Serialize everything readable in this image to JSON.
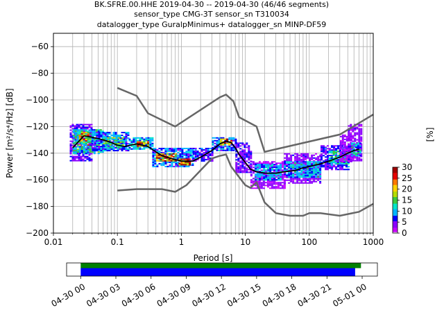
{
  "title": {
    "line1": "BK.SFRE.00.HHE   2019-04-30 -- 2019-04-30  (46/46 segments)",
    "line2": "sensor_type CMG-3T sensor_sn T310034",
    "line3": "datalogger_type GuralpMinimus+ datalogger_sn MINP-DF59"
  },
  "colors": {
    "model_lines": "#666666",
    "mean_line": "#000000",
    "grid": "#b0b0b0",
    "colorbar": [
      "#ffffff",
      "#c800ff",
      "#8c00ff",
      "#0000ff",
      "#00b4ff",
      "#00e6c8",
      "#3cc83c",
      "#b4dc00",
      "#ffd200",
      "#ff7800",
      "#e60000",
      "#a00000"
    ],
    "timeline_top": "#008000",
    "timeline_bottom": "#0000ff"
  },
  "chart_data": [
    {
      "type": "heatmap",
      "title": "BK.SFRE.00.HHE   2019-04-30 -- 2019-04-30  (46/46 segments)",
      "xlabel": "Period [s]",
      "ylabel": "Power [m²/s⁴/Hz] [dB]",
      "xscale": "log",
      "xlim": [
        0.01,
        1000
      ],
      "ylim": [
        -200,
        -50
      ],
      "x_ticks": [
        0.01,
        0.1,
        1,
        10,
        100,
        1000
      ],
      "x_tick_labels": [
        "0.01",
        "0.1",
        "1",
        "10",
        "100",
        "1000"
      ],
      "y_ticks": [
        -200,
        -180,
        -160,
        -140,
        -120,
        -100,
        -80,
        -60
      ],
      "y_tick_labels": [
        "−200",
        "−180",
        "−160",
        "−140",
        "−120",
        "−100",
        "−80",
        "−60"
      ],
      "grid": true,
      "colorbar": {
        "label": "[%]",
        "range": [
          0,
          30
        ],
        "ticks": [
          0,
          5,
          10,
          15,
          20,
          25,
          30
        ],
        "tick_labels": [
          "0",
          "5",
          "10",
          "15",
          "20",
          "25",
          "30"
        ]
      },
      "mean_curve": {
        "period": [
          0.02,
          0.025,
          0.03,
          0.04,
          0.06,
          0.08,
          0.1,
          0.13,
          0.16,
          0.2,
          0.3,
          0.4,
          0.5,
          0.7,
          1,
          1.5,
          2,
          3,
          4,
          5,
          6,
          7,
          8,
          10,
          12,
          15,
          20,
          30,
          40,
          60,
          80,
          100,
          150,
          200,
          300,
          400,
          500,
          600
        ],
        "power": [
          -136,
          -131,
          -127,
          -128,
          -130,
          -132,
          -134,
          -135,
          -134,
          -133,
          -135,
          -139,
          -142,
          -144,
          -146,
          -146,
          -143,
          -138,
          -133,
          -131,
          -132,
          -136,
          -141,
          -147,
          -152,
          -154,
          -155,
          -155,
          -154,
          -153,
          -151,
          -150,
          -148,
          -146,
          -143,
          -140,
          -138,
          -137
        ]
      },
      "model_high": {
        "period": [
          0.1,
          0.2,
          0.3,
          0.8,
          4,
          5,
          6.5,
          8,
          15,
          20,
          300,
          1000
        ],
        "power": [
          -91,
          -97,
          -110,
          -120,
          -98,
          -96,
          -101,
          -113,
          -120,
          -139,
          -126,
          -111
        ]
      },
      "model_low": {
        "period": [
          0.1,
          0.2,
          0.5,
          0.8,
          1.2,
          3,
          4,
          5,
          6,
          8,
          10,
          12,
          15,
          20,
          30,
          50,
          80,
          100,
          150,
          300,
          600,
          1000
        ],
        "power": [
          -168,
          -167,
          -167,
          -169,
          -164,
          -144,
          -142,
          -141,
          -150,
          -158,
          -164,
          -166,
          -162,
          -177,
          -185,
          -187,
          -187,
          -185,
          -185,
          -187,
          -184,
          -178
        ]
      },
      "density_bands": [
        {
          "p0": 0.018,
          "p1": 0.04,
          "lo": -146,
          "hi": -118,
          "pct": 5
        },
        {
          "p0": 0.02,
          "p1": 0.06,
          "lo": -140,
          "hi": -122,
          "pct": 12
        },
        {
          "p0": 0.025,
          "p1": 0.035,
          "lo": -134,
          "hi": -124,
          "pct": 20
        },
        {
          "p0": 0.04,
          "p1": 0.15,
          "lo": -138,
          "hi": -124,
          "pct": 8
        },
        {
          "p0": 0.06,
          "p1": 0.12,
          "lo": -136,
          "hi": -128,
          "pct": 14
        },
        {
          "p0": 0.15,
          "p1": 0.35,
          "lo": -137,
          "hi": -128,
          "pct": 10
        },
        {
          "p0": 0.2,
          "p1": 0.3,
          "lo": -135,
          "hi": -131,
          "pct": 22
        },
        {
          "p0": 0.35,
          "p1": 1.5,
          "lo": -150,
          "hi": -136,
          "pct": 8
        },
        {
          "p0": 0.4,
          "p1": 0.8,
          "lo": -146,
          "hi": -140,
          "pct": 24
        },
        {
          "p0": 0.9,
          "p1": 1.4,
          "lo": -149,
          "hi": -144,
          "pct": 27
        },
        {
          "p0": 1.5,
          "p1": 3,
          "lo": -146,
          "hi": -136,
          "pct": 6
        },
        {
          "p0": 3,
          "p1": 7,
          "lo": -138,
          "hi": -128,
          "pct": 8
        },
        {
          "p0": 4,
          "p1": 6,
          "lo": -134,
          "hi": -129,
          "pct": 22
        },
        {
          "p0": 7,
          "p1": 12,
          "lo": -154,
          "hi": -132,
          "pct": 5
        },
        {
          "p0": 12,
          "p1": 40,
          "lo": -166,
          "hi": -146,
          "pct": 3
        },
        {
          "p0": 14,
          "p1": 35,
          "lo": -160,
          "hi": -148,
          "pct": 9
        },
        {
          "p0": 40,
          "p1": 150,
          "lo": -162,
          "hi": -140,
          "pct": 4
        },
        {
          "p0": 40,
          "p1": 150,
          "lo": -158,
          "hi": -146,
          "pct": 10
        },
        {
          "p0": 150,
          "p1": 400,
          "lo": -152,
          "hi": -134,
          "pct": 6
        },
        {
          "p0": 200,
          "p1": 400,
          "lo": -148,
          "hi": -138,
          "pct": 12
        },
        {
          "p0": 300,
          "p1": 450,
          "lo": -146,
          "hi": -126,
          "pct": 3
        },
        {
          "p0": 400,
          "p1": 650,
          "lo": -146,
          "hi": -118,
          "pct": 4
        },
        {
          "p0": 450,
          "p1": 650,
          "lo": -142,
          "hi": -132,
          "pct": 11
        }
      ]
    },
    {
      "type": "bar",
      "title": "",
      "xlabel": "",
      "ylabel": "",
      "x_tick_labels": [
        "04-30 00",
        "04-30 03",
        "04-30 06",
        "04-30 09",
        "04-30 12",
        "04-30 15",
        "04-30 18",
        "04-30 21",
        "05-01 00"
      ],
      "xlim_hours": [
        -1.2,
        25.3
      ],
      "series": [
        {
          "start_hour": 0,
          "end_hour": 23.9,
          "color_key": "timeline_top"
        },
        {
          "start_hour": 0,
          "end_hour": 23.4,
          "color_key": "timeline_bottom"
        }
      ]
    }
  ]
}
